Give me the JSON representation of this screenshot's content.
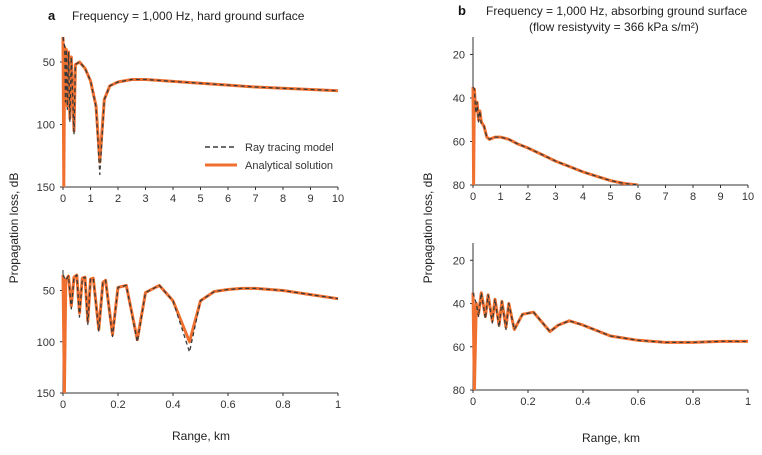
{
  "figure": {
    "panel_a_letter": "a",
    "panel_b_letter": "b",
    "panel_a_title": "Frequency = 1,000 Hz, hard ground surface",
    "panel_b_title_line1": "Frequency = 1,000 Hz, absorbing ground surface",
    "panel_b_title_line2": "(flow resistyvity = 366 kPa s/m²)",
    "ylabel_a": "Propagation loss, dB",
    "ylabel_b": "Propagation loss, dB",
    "xlabel_a": "Range, km",
    "xlabel_b": "Range, km",
    "legend": {
      "ray": "Ray tracing model",
      "analytical": "Analytical solution"
    },
    "colors": {
      "ray": "#3a3a3a",
      "analytical": "#f07030"
    }
  },
  "chart_data": [
    {
      "id": "a-top",
      "type": "line",
      "title": "Frequency = 1,000 Hz, hard ground surface",
      "xlabel": "",
      "ylabel": "Propagation loss, dB",
      "xlim": [
        0,
        10
      ],
      "ylim": [
        150,
        30
      ],
      "y_inverted": true,
      "xticks": [
        0,
        1,
        2,
        3,
        4,
        5,
        6,
        7,
        8,
        9,
        10
      ],
      "xtick_labels": [
        "0",
        "1",
        "2",
        "3",
        "4",
        "5",
        "6",
        "7",
        "8",
        "9",
        "10"
      ],
      "yticks": [
        50,
        100,
        150
      ],
      "ytick_labels": [
        "50",
        "100",
        "150"
      ],
      "legend": [
        "Ray tracing model",
        "Analytical solution"
      ],
      "legend_position": "right",
      "series": [
        {
          "name": "Analytical solution",
          "style": "solid",
          "points": [
            [
              0,
              30
            ],
            [
              0.03,
              150
            ],
            [
              0.06,
              38
            ],
            [
              0.09,
              80
            ],
            [
              0.12,
              40
            ],
            [
              0.16,
              85
            ],
            [
              0.2,
              42
            ],
            [
              0.25,
              95
            ],
            [
              0.3,
              46
            ],
            [
              0.4,
              105
            ],
            [
              0.45,
              52
            ],
            [
              0.6,
              50
            ],
            [
              0.8,
              55
            ],
            [
              1.0,
              65
            ],
            [
              1.2,
              85
            ],
            [
              1.34,
              130
            ],
            [
              1.5,
              80
            ],
            [
              1.7,
              69
            ],
            [
              2.0,
              66
            ],
            [
              2.5,
              64
            ],
            [
              3,
              64
            ],
            [
              4,
              65.5
            ],
            [
              5,
              67
            ],
            [
              6,
              68.5
            ],
            [
              7,
              70
            ],
            [
              8,
              71
            ],
            [
              9,
              72
            ],
            [
              10,
              73
            ]
          ]
        },
        {
          "name": "Ray tracing model",
          "style": "dashed",
          "points": [
            [
              0,
              30
            ],
            [
              0.06,
              38
            ],
            [
              0.09,
              82
            ],
            [
              0.12,
              40
            ],
            [
              0.16,
              88
            ],
            [
              0.2,
              42
            ],
            [
              0.25,
              98
            ],
            [
              0.3,
              46
            ],
            [
              0.4,
              108
            ],
            [
              0.45,
              52
            ],
            [
              0.6,
              50
            ],
            [
              0.8,
              55
            ],
            [
              1.0,
              65
            ],
            [
              1.2,
              86
            ],
            [
              1.34,
              140
            ],
            [
              1.5,
              80
            ],
            [
              1.7,
              69
            ],
            [
              2.0,
              66
            ],
            [
              2.5,
              64
            ],
            [
              3,
              64
            ],
            [
              4,
              65.5
            ],
            [
              5,
              67
            ],
            [
              6,
              68.5
            ],
            [
              7,
              70
            ],
            [
              8,
              71
            ],
            [
              9,
              72
            ],
            [
              10,
              73
            ]
          ]
        }
      ]
    },
    {
      "id": "a-bottom",
      "type": "line",
      "xlabel": "Range, km",
      "ylabel": "Propagation loss, dB",
      "xlim": [
        0,
        1
      ],
      "ylim": [
        150,
        30
      ],
      "y_inverted": true,
      "xticks": [
        0,
        0.2,
        0.4,
        0.6,
        0.8,
        1
      ],
      "xtick_labels": [
        "0",
        "0.2",
        "0.4",
        "0.6",
        "0.8",
        "1"
      ],
      "yticks": [
        50,
        100,
        150
      ],
      "ytick_labels": [
        "50",
        "100",
        "150"
      ],
      "series": [
        {
          "name": "Analytical solution",
          "style": "solid",
          "points": [
            [
              0,
              35
            ],
            [
              0.005,
              150
            ],
            [
              0.01,
              40
            ],
            [
              0.02,
              36
            ],
            [
              0.03,
              65
            ],
            [
              0.04,
              37
            ],
            [
              0.05,
              35
            ],
            [
              0.06,
              72
            ],
            [
              0.07,
              38
            ],
            [
              0.08,
              37
            ],
            [
              0.09,
              80
            ],
            [
              0.1,
              39
            ],
            [
              0.11,
              38
            ],
            [
              0.13,
              88
            ],
            [
              0.145,
              42
            ],
            [
              0.155,
              40
            ],
            [
              0.18,
              93
            ],
            [
              0.2,
              47
            ],
            [
              0.23,
              45
            ],
            [
              0.27,
              98
            ],
            [
              0.3,
              52
            ],
            [
              0.35,
              45
            ],
            [
              0.4,
              60
            ],
            [
              0.46,
              100
            ],
            [
              0.5,
              60
            ],
            [
              0.55,
              51
            ],
            [
              0.6,
              49
            ],
            [
              0.65,
              48
            ],
            [
              0.7,
              48
            ],
            [
              0.8,
              50
            ],
            [
              0.9,
              54
            ],
            [
              1.0,
              58
            ]
          ]
        },
        {
          "name": "Ray tracing model",
          "style": "dashed",
          "points": [
            [
              0,
              35
            ],
            [
              0.01,
              40
            ],
            [
              0.02,
              36
            ],
            [
              0.03,
              68
            ],
            [
              0.04,
              37
            ],
            [
              0.05,
              35
            ],
            [
              0.06,
              76
            ],
            [
              0.07,
              38
            ],
            [
              0.08,
              37
            ],
            [
              0.09,
              83
            ],
            [
              0.1,
              39
            ],
            [
              0.11,
              38
            ],
            [
              0.13,
              90
            ],
            [
              0.145,
              42
            ],
            [
              0.155,
              40
            ],
            [
              0.18,
              95
            ],
            [
              0.2,
              47
            ],
            [
              0.23,
              45
            ],
            [
              0.27,
              100
            ],
            [
              0.3,
              52
            ],
            [
              0.35,
              45
            ],
            [
              0.4,
              60
            ],
            [
              0.46,
              110
            ],
            [
              0.5,
              60
            ],
            [
              0.55,
              51
            ],
            [
              0.6,
              49
            ],
            [
              0.65,
              48
            ],
            [
              0.7,
              48
            ],
            [
              0.8,
              50
            ],
            [
              0.9,
              54
            ],
            [
              1.0,
              58
            ]
          ]
        }
      ]
    },
    {
      "id": "b-top",
      "type": "line",
      "title": "Frequency = 1,000 Hz, absorbing ground surface (flow resistyvity = 366 kPa s/m²)",
      "xlabel": "",
      "ylabel": "Propagation loss, dB",
      "xlim": [
        0,
        10
      ],
      "ylim": [
        80,
        12
      ],
      "y_inverted": true,
      "xticks": [
        0,
        1,
        2,
        3,
        4,
        5,
        6,
        7,
        8,
        9,
        10
      ],
      "xtick_labels": [
        "0",
        "1",
        "2",
        "3",
        "4",
        "5",
        "6",
        "7",
        "8",
        "9",
        "10"
      ],
      "yticks": [
        20,
        40,
        60,
        80
      ],
      "ytick_labels": [
        "20",
        "40",
        "60",
        "80"
      ],
      "series": [
        {
          "name": "Analytical solution",
          "style": "solid",
          "points": [
            [
              0,
              35
            ],
            [
              0.02,
              80
            ],
            [
              0.05,
              36
            ],
            [
              0.1,
              46
            ],
            [
              0.15,
              42
            ],
            [
              0.2,
              50
            ],
            [
              0.25,
              46
            ],
            [
              0.3,
              51
            ],
            [
              0.4,
              53
            ],
            [
              0.5,
              58
            ],
            [
              0.6,
              59
            ],
            [
              0.8,
              58
            ],
            [
              1.0,
              58
            ],
            [
              1.3,
              59
            ],
            [
              1.6,
              61
            ],
            [
              2,
              63
            ],
            [
              2.5,
              66
            ],
            [
              3,
              69
            ],
            [
              3.5,
              71.5
            ],
            [
              4,
              74
            ],
            [
              4.5,
              76
            ],
            [
              5,
              78
            ],
            [
              5.5,
              79.3
            ],
            [
              6,
              80
            ]
          ]
        },
        {
          "name": "Ray tracing model",
          "style": "dashed",
          "points": [
            [
              0,
              35
            ],
            [
              0.05,
              36
            ],
            [
              0.1,
              47
            ],
            [
              0.15,
              42
            ],
            [
              0.2,
              51
            ],
            [
              0.25,
              46
            ],
            [
              0.3,
              52
            ],
            [
              0.4,
              53
            ],
            [
              0.5,
              58
            ],
            [
              0.6,
              59
            ],
            [
              0.8,
              58
            ],
            [
              1.0,
              58
            ],
            [
              1.3,
              59
            ],
            [
              1.6,
              61
            ],
            [
              2,
              63
            ],
            [
              2.5,
              66
            ],
            [
              3,
              69
            ],
            [
              3.5,
              71.5
            ],
            [
              4,
              74
            ],
            [
              4.5,
              76
            ],
            [
              5,
              78
            ],
            [
              5.5,
              79.3
            ],
            [
              6,
              80
            ]
          ]
        }
      ]
    },
    {
      "id": "b-bottom",
      "type": "line",
      "xlabel": "Range, km",
      "ylabel": "Propagation loss, dB",
      "xlim": [
        0,
        1
      ],
      "ylim": [
        80,
        12
      ],
      "y_inverted": true,
      "xticks": [
        0,
        0.2,
        0.4,
        0.6,
        0.8,
        1
      ],
      "xtick_labels": [
        "0",
        "0.2",
        "0.4",
        "0.6",
        "0.8",
        "1"
      ],
      "yticks": [
        20,
        40,
        60,
        80
      ],
      "ytick_labels": [
        "20",
        "40",
        "60",
        "80"
      ],
      "series": [
        {
          "name": "Analytical solution",
          "style": "solid",
          "points": [
            [
              0,
              35
            ],
            [
              0.005,
              80
            ],
            [
              0.012,
              40
            ],
            [
              0.02,
              45
            ],
            [
              0.03,
              35
            ],
            [
              0.045,
              46
            ],
            [
              0.055,
              36
            ],
            [
              0.07,
              48
            ],
            [
              0.08,
              38
            ],
            [
              0.095,
              50
            ],
            [
              0.105,
              39
            ],
            [
              0.12,
              51
            ],
            [
              0.13,
              40
            ],
            [
              0.15,
              52
            ],
            [
              0.18,
              45
            ],
            [
              0.22,
              44
            ],
            [
              0.26,
              50
            ],
            [
              0.28,
              53
            ],
            [
              0.31,
              50
            ],
            [
              0.35,
              48
            ],
            [
              0.4,
              50
            ],
            [
              0.5,
              55
            ],
            [
              0.6,
              57
            ],
            [
              0.7,
              58
            ],
            [
              0.8,
              58
            ],
            [
              0.9,
              57.5
            ],
            [
              1.0,
              57.5
            ]
          ]
        },
        {
          "name": "Ray tracing model",
          "style": "dashed",
          "points": [
            [
              0,
              35
            ],
            [
              0.012,
              40
            ],
            [
              0.02,
              46
            ],
            [
              0.03,
              35
            ],
            [
              0.045,
              47
            ],
            [
              0.055,
              36
            ],
            [
              0.07,
              49
            ],
            [
              0.08,
              38
            ],
            [
              0.095,
              51
            ],
            [
              0.105,
              39
            ],
            [
              0.12,
              52
            ],
            [
              0.13,
              40
            ],
            [
              0.15,
              52
            ],
            [
              0.18,
              45
            ],
            [
              0.22,
              44
            ],
            [
              0.26,
              50
            ],
            [
              0.28,
              53
            ],
            [
              0.31,
              50
            ],
            [
              0.35,
              48
            ],
            [
              0.4,
              50
            ],
            [
              0.5,
              55
            ],
            [
              0.6,
              57
            ],
            [
              0.7,
              58
            ],
            [
              0.8,
              58
            ],
            [
              0.9,
              57.5
            ],
            [
              1.0,
              57.5
            ]
          ]
        }
      ]
    }
  ]
}
